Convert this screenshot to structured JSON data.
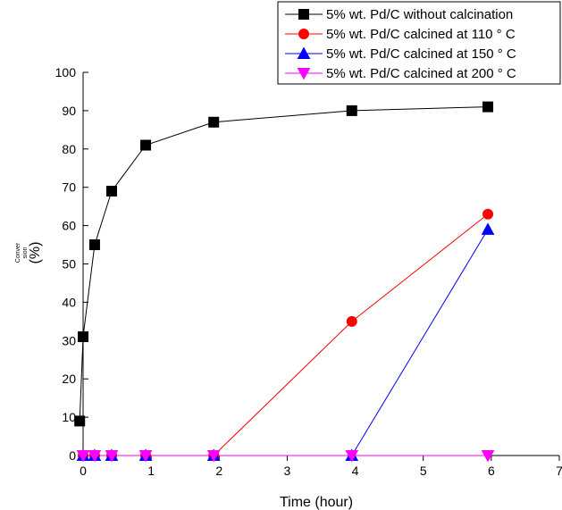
{
  "chart_data": {
    "type": "line",
    "xlabel": "Time (hour)",
    "ylabel_main": "Conver sion",
    "ylabel_unit": "(%)",
    "xlim": [
      0,
      7
    ],
    "ylim": [
      0,
      100
    ],
    "xticks": [
      0,
      1,
      2,
      3,
      4,
      5,
      6,
      7
    ],
    "yticks": [
      0,
      10,
      20,
      30,
      40,
      50,
      60,
      70,
      80,
      90,
      100
    ],
    "grid": false,
    "legend_position": "top-right",
    "series": [
      {
        "name": "5% wt. Pd/C without calcination",
        "color": "#000000",
        "marker": "square",
        "x": [
          -0.05,
          0,
          0.17,
          0.42,
          0.92,
          1.92,
          3.95,
          5.95
        ],
        "y": [
          9,
          31,
          55,
          69,
          81,
          87,
          90,
          91
        ]
      },
      {
        "name": "5% wt. Pd/C calcined at 110 ° C",
        "color": "#ff0000",
        "marker": "circle",
        "x": [
          0,
          0.17,
          0.42,
          0.92,
          1.92,
          3.95,
          5.95
        ],
        "y": [
          0,
          0,
          0,
          0,
          0,
          35,
          63
        ]
      },
      {
        "name": "5% wt. Pd/C calcined at 150 ° C",
        "color": "#0000ff",
        "marker": "triangle-up",
        "x": [
          0,
          0.17,
          0.42,
          0.92,
          1.92,
          3.95,
          5.95
        ],
        "y": [
          0,
          0,
          0,
          0,
          0,
          0,
          59
        ]
      },
      {
        "name": "5% wt. Pd/C calcined at 200 ° C",
        "color": "#ff00ff",
        "marker": "triangle-down",
        "x": [
          0,
          0.17,
          0.42,
          0.92,
          1.92,
          3.95,
          5.95
        ],
        "y": [
          0,
          0,
          0,
          0,
          0,
          0,
          0
        ]
      }
    ]
  }
}
